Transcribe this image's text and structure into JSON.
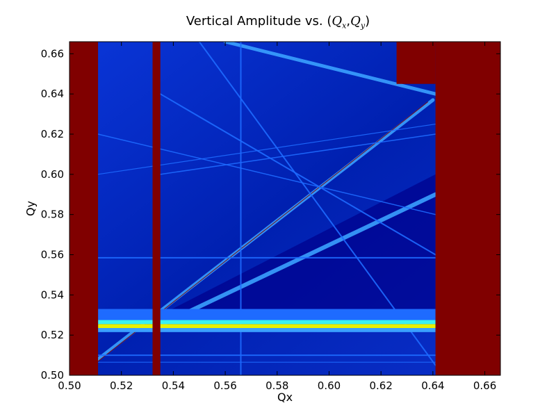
{
  "chart_data": {
    "type": "heatmap",
    "title_prefix": "Vertical Amplitude vs. (",
    "title_qx": "Q",
    "title_qx_sub": "x",
    "title_sep": ",",
    "title_qy": "Q",
    "title_qy_sub": "y",
    "title_suffix": ")",
    "xlabel": "Qx",
    "ylabel": "Qy",
    "xlim": [
      0.5,
      0.666
    ],
    "ylim": [
      0.5,
      0.666
    ],
    "x_ticks": [
      0.5,
      0.52,
      0.54,
      0.56,
      0.58,
      0.6,
      0.62,
      0.64,
      0.66
    ],
    "x_tick_labels": [
      "0.50",
      "0.52",
      "0.54",
      "0.56",
      "0.58",
      "0.60",
      "0.62",
      "0.64",
      "0.66"
    ],
    "y_ticks": [
      0.5,
      0.52,
      0.54,
      0.56,
      0.58,
      0.6,
      0.62,
      0.64,
      0.66
    ],
    "y_tick_labels": [
      "0.50",
      "0.52",
      "0.54",
      "0.56",
      "0.58",
      "0.60",
      "0.62",
      "0.64",
      "0.66"
    ],
    "colormap": "jet",
    "colors": {
      "background_low": "#00008b",
      "field": "#0a2fc8",
      "resonance_line": "#1e6bff",
      "strong_line": "#3aa0ff",
      "cyan": "#3cf0f0",
      "yellow": "#e8f000",
      "saturated": "#800000"
    },
    "saturated_regions": [
      {
        "qx": [
          0.5,
          0.511
        ],
        "qy": [
          0.5,
          0.666
        ]
      },
      {
        "qx": [
          0.532,
          0.535
        ],
        "qy": [
          0.5,
          0.666
        ]
      },
      {
        "qx": [
          0.641,
          0.666
        ],
        "qy": [
          0.5,
          0.666
        ]
      },
      {
        "qx": [
          0.626,
          0.641
        ],
        "qy": [
          0.645,
          0.666
        ]
      }
    ],
    "resonance_lines": [
      {
        "from": [
          0.511,
          0.508
        ],
        "to": [
          0.64,
          0.637
        ],
        "color": "strong_line",
        "width": 5
      },
      {
        "from": [
          0.511,
          0.507
        ],
        "to": [
          0.638,
          0.636
        ],
        "color": "saturated",
        "width": 1
      },
      {
        "from": [
          0.535,
          0.525
        ],
        "to": [
          0.641,
          0.59
        ],
        "color": "strong_line",
        "width": 6
      },
      {
        "from": [
          0.535,
          0.64
        ],
        "to": [
          0.641,
          0.56
        ],
        "color": "resonance_line",
        "width": 2
      },
      {
        "from": [
          0.55,
          0.666
        ],
        "to": [
          0.641,
          0.505
        ],
        "color": "resonance_line",
        "width": 2
      },
      {
        "from": [
          0.56,
          0.666
        ],
        "to": [
          0.641,
          0.64
        ],
        "color": "strong_line",
        "width": 5
      },
      {
        "from": [
          0.535,
          0.6
        ],
        "to": [
          0.641,
          0.62
        ],
        "color": "resonance_line",
        "width": 1.5
      },
      {
        "from": [
          0.511,
          0.62
        ],
        "to": [
          0.641,
          0.58
        ],
        "color": "resonance_line",
        "width": 1.5
      },
      {
        "from": [
          0.511,
          0.6
        ],
        "to": [
          0.641,
          0.625
        ],
        "color": "resonance_line",
        "width": 1.2
      },
      {
        "from": [
          0.566,
          0.5
        ],
        "to": [
          0.566,
          0.666
        ],
        "color": "resonance_line",
        "width": 2
      },
      {
        "from": [
          0.511,
          0.5585
        ],
        "to": [
          0.641,
          0.5585
        ],
        "color": "resonance_line",
        "width": 2
      },
      {
        "from": [
          0.511,
          0.51
        ],
        "to": [
          0.641,
          0.51
        ],
        "color": "resonance_line",
        "width": 2
      },
      {
        "from": [
          0.511,
          0.5065
        ],
        "to": [
          0.641,
          0.5065
        ],
        "color": "resonance_line",
        "width": 1.2
      }
    ],
    "bands": [
      {
        "qy": [
          0.5235,
          0.5255
        ],
        "qx": [
          0.511,
          0.641
        ],
        "color": "yellow"
      },
      {
        "qy": [
          0.5255,
          0.5275
        ],
        "qx": [
          0.511,
          0.641
        ],
        "color": "cyan"
      },
      {
        "qy": [
          0.5215,
          0.5235
        ],
        "qx": [
          0.511,
          0.641
        ],
        "color": "strong_line"
      },
      {
        "qy": [
          0.5275,
          0.533
        ],
        "qx": [
          0.511,
          0.641
        ],
        "color": "resonance_line"
      }
    ],
    "grid": false,
    "legend": "none"
  }
}
